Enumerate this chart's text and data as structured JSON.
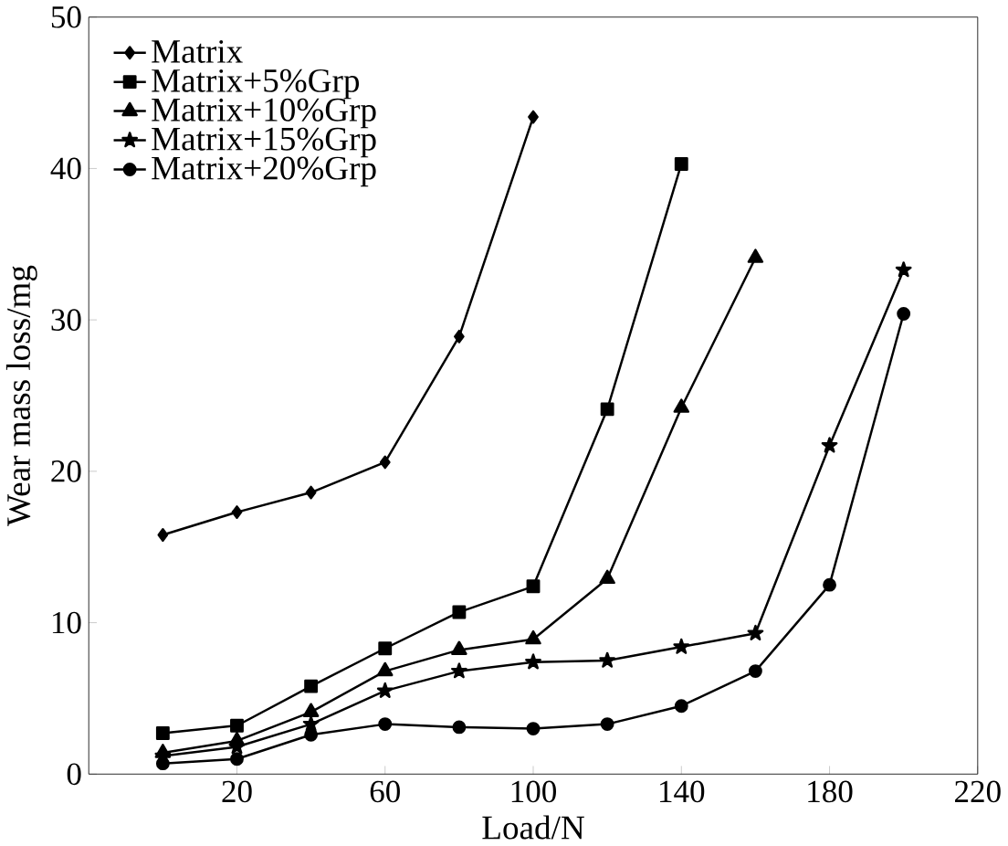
{
  "chart_data": {
    "type": "line",
    "xlabel": "Load/N",
    "ylabel": "Wear mass loss/mg",
    "xlim": [
      -20,
      220
    ],
    "xticks": [
      20,
      60,
      100,
      140,
      180,
      220
    ],
    "ylim": [
      0,
      50
    ],
    "yticks": [
      0,
      10,
      20,
      30,
      40,
      50
    ],
    "grid": false,
    "legend": "top left",
    "x": [
      0,
      20,
      40,
      60,
      80,
      100,
      120,
      140,
      160,
      180,
      200
    ],
    "series": [
      {
        "name": "Matrix",
        "color": "#000000",
        "marker": "diamond",
        "values": [
          15.8,
          17.3,
          18.6,
          20.6,
          28.9,
          43.4,
          null,
          null,
          null,
          null,
          null
        ]
      },
      {
        "name": "Matrix+5%Grp",
        "color": "#000000",
        "marker": "square",
        "values": [
          2.7,
          3.2,
          5.8,
          8.3,
          10.7,
          12.4,
          24.1,
          40.3,
          null,
          null,
          null
        ]
      },
      {
        "name": "Matrix+10%Grp",
        "color": "#000000",
        "marker": "triangle",
        "values": [
          1.4,
          2.2,
          4.1,
          6.8,
          8.2,
          8.9,
          12.9,
          24.2,
          34.1,
          null,
          null
        ]
      },
      {
        "name": "Matrix+15%Grp",
        "color": "#000000",
        "marker": "star",
        "values": [
          1.2,
          1.8,
          3.3,
          5.5,
          6.8,
          7.4,
          7.5,
          8.4,
          9.3,
          21.7,
          33.3
        ]
      },
      {
        "name": "Matrix+20%Grp",
        "color": "#000000",
        "marker": "circle",
        "values": [
          0.7,
          1.0,
          2.6,
          3.3,
          3.1,
          3.0,
          3.3,
          4.5,
          6.8,
          12.5,
          30.4
        ]
      }
    ]
  }
}
